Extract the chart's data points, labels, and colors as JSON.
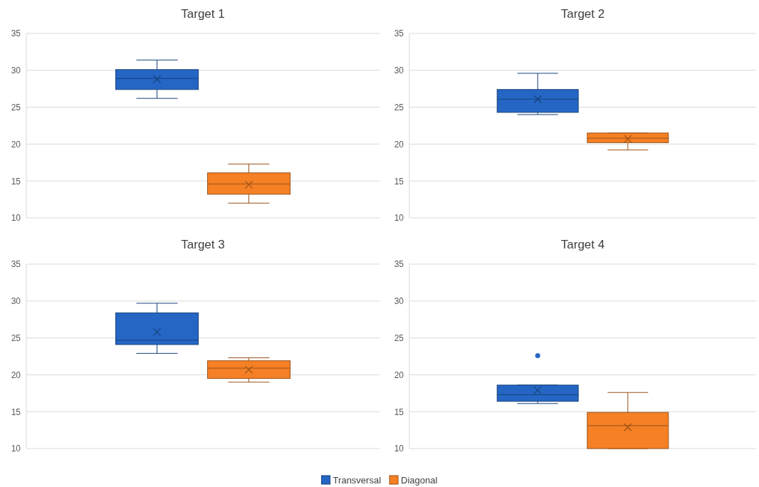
{
  "chart_data": [
    {
      "type": "box",
      "title": "Target 1",
      "categories": [
        null
      ],
      "ylim": [
        10,
        35
      ],
      "yticks": [
        10,
        15,
        20,
        25,
        30,
        35
      ],
      "grid": "y",
      "legend": "bottom",
      "marker": "cross",
      "series": [
        {
          "name": "Transversal",
          "color": "#2566c4",
          "boxes": [
            {
              "low": 26.2,
              "q1": 27.4,
              "median": 28.9,
              "q3": 30.1,
              "high": 31.4,
              "mean": 28.8
            }
          ]
        },
        {
          "name": "Diagonal",
          "color": "#f58025",
          "boxes": [
            {
              "low": 12.0,
              "q1": 13.2,
              "median": 14.6,
              "q3": 16.1,
              "high": 17.3,
              "mean": 14.5
            }
          ]
        }
      ]
    },
    {
      "type": "box",
      "title": "Target 2",
      "categories": [
        null
      ],
      "ylim": [
        10,
        35
      ],
      "yticks": [
        10,
        15,
        20,
        25,
        30,
        35
      ],
      "grid": "y",
      "marker": "cross",
      "series": [
        {
          "color": "#2566c4",
          "boxes": [
            {
              "low": 24.0,
              "q1": 24.3,
              "median": 26.1,
              "q3": 27.4,
              "high": 29.6,
              "mean": 26.1
            }
          ]
        },
        {
          "color": "#f58025",
          "boxes": [
            {
              "low": 19.2,
              "q1": 20.2,
              "median": 20.8,
              "q3": 21.5,
              "high": 21.5,
              "mean": 20.7
            }
          ]
        }
      ]
    },
    {
      "type": "box",
      "title": "Target 3",
      "categories": [
        null
      ],
      "ylim": [
        10,
        35
      ],
      "yticks": [
        10,
        15,
        20,
        25,
        30,
        35
      ],
      "grid": "y",
      "marker": "cross",
      "series": [
        {
          "color": "#2566c4",
          "boxes": [
            {
              "low": 22.9,
              "q1": 24.1,
              "median": 24.7,
              "q3": 28.4,
              "high": 29.7,
              "mean": 25.8
            }
          ]
        },
        {
          "color": "#f58025",
          "boxes": [
            {
              "low": 19.0,
              "q1": 19.5,
              "median": 20.9,
              "q3": 21.9,
              "high": 22.3,
              "mean": 20.7
            }
          ]
        }
      ]
    },
    {
      "type": "box",
      "title": "Target 4",
      "categories": [
        null
      ],
      "ylim": [
        10,
        35
      ],
      "yticks": [
        10,
        15,
        20,
        25,
        30,
        35
      ],
      "grid": "y",
      "marker": "cross",
      "series": [
        {
          "color": "#2566c4",
          "boxes": [
            {
              "low": 16.1,
              "q1": 16.4,
              "median": 17.3,
              "q3": 18.6,
              "high": 18.6,
              "mean": 17.9,
              "outliers": [
                22.6
              ]
            }
          ]
        },
        {
          "color": "#f58025",
          "boxes": [
            {
              "low": 10.0,
              "q1": 10.0,
              "median": 13.1,
              "q3": 14.9,
              "high": 17.6,
              "mean": 12.9
            }
          ]
        }
      ]
    }
  ]
}
